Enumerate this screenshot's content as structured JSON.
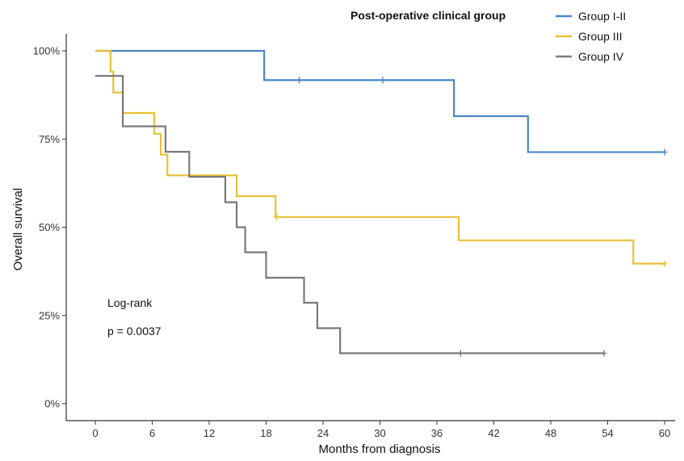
{
  "chart_data": {
    "type": "line",
    "subtype": "kaplan-meier step curve",
    "xlabel": "Months from diagnosis",
    "ylabel": "Overall survival",
    "xlim": [
      0,
      60
    ],
    "ylim": [
      0,
      1
    ],
    "x_ticks": [
      0,
      6,
      12,
      18,
      24,
      30,
      36,
      42,
      48,
      54,
      60
    ],
    "y_ticks": [
      0,
      0.25,
      0.5,
      0.75,
      1.0
    ],
    "y_tick_labels": [
      "0%",
      "25%",
      "50%",
      "75%",
      "100%"
    ],
    "grid": false,
    "legend": {
      "title": "Post-operative clinical group",
      "placement": "top-right"
    },
    "series": [
      {
        "name": "Group I-II",
        "color": "#4a86c8",
        "steps": [
          [
            0,
            1.0
          ],
          [
            17.8,
            0.917
          ],
          [
            37.8,
            0.815
          ],
          [
            45.6,
            0.713
          ],
          [
            60,
            0.713
          ]
        ],
        "censors": [
          21.5,
          30.3,
          60
        ]
      },
      {
        "name": "Group III",
        "color": "#e8c034",
        "steps": [
          [
            0,
            1.0
          ],
          [
            1.6,
            0.941
          ],
          [
            1.9,
            0.882
          ],
          [
            2.9,
            0.824
          ],
          [
            6.2,
            0.765
          ],
          [
            6.9,
            0.706
          ],
          [
            7.6,
            0.647
          ],
          [
            14.9,
            0.588
          ],
          [
            19.0,
            0.529
          ],
          [
            38.3,
            0.463
          ],
          [
            56.7,
            0.397
          ],
          [
            60,
            0.397
          ]
        ],
        "censors": [
          19.1,
          60
        ]
      },
      {
        "name": "Group IV",
        "color": "#7a7a7a",
        "steps": [
          [
            0,
            0.929
          ],
          [
            2.9,
            0.786
          ],
          [
            7.4,
            0.714
          ],
          [
            9.9,
            0.643
          ],
          [
            13.7,
            0.571
          ],
          [
            14.9,
            0.5
          ],
          [
            15.8,
            0.429
          ],
          [
            18.0,
            0.357
          ],
          [
            22.0,
            0.286
          ],
          [
            23.4,
            0.214
          ],
          [
            25.8,
            0.143
          ],
          [
            53.6,
            0.143
          ]
        ],
        "censors": [
          38.5,
          53.6
        ]
      }
    ],
    "annotations": [
      "Log-rank",
      "p = 0.0037"
    ]
  }
}
